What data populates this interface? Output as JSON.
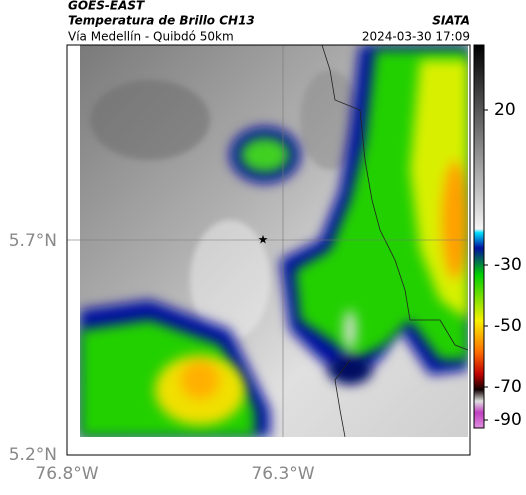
{
  "header": {
    "satellite": "GOES-EAST",
    "title": "Temperatura de Brillo CH13",
    "agency": "SIATA",
    "subtitle": "Vía Medellín - Quibdó 50km",
    "datetime": "2024-03-30 17:09"
  },
  "axes": {
    "y_labels": [
      "5.7°N",
      "5.2°N"
    ],
    "x_labels": [
      "76.8°W",
      "76.3°W"
    ]
  },
  "colorbar": {
    "ticks": [
      20,
      -30,
      -50,
      -70,
      -90
    ]
  }
}
